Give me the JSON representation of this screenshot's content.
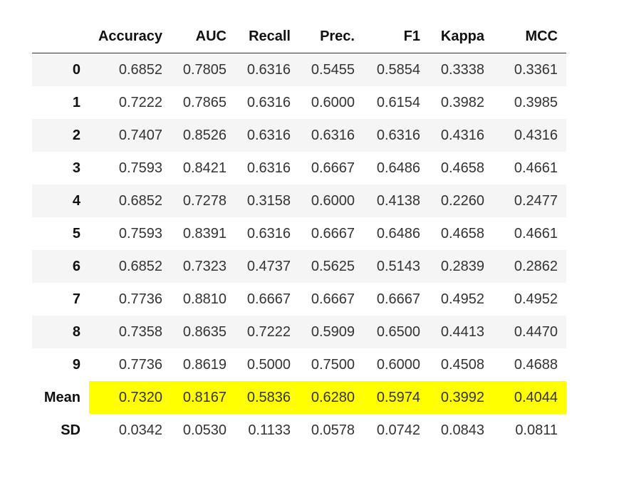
{
  "table": {
    "columns": [
      "Accuracy",
      "AUC",
      "Recall",
      "Prec.",
      "F1",
      "Kappa",
      "MCC"
    ],
    "rows": [
      {
        "index": "0",
        "values": [
          "0.6852",
          "0.7805",
          "0.6316",
          "0.5455",
          "0.5854",
          "0.3338",
          "0.3361"
        ]
      },
      {
        "index": "1",
        "values": [
          "0.7222",
          "0.7865",
          "0.6316",
          "0.6000",
          "0.6154",
          "0.3982",
          "0.3985"
        ]
      },
      {
        "index": "2",
        "values": [
          "0.7407",
          "0.8526",
          "0.6316",
          "0.6316",
          "0.6316",
          "0.4316",
          "0.4316"
        ]
      },
      {
        "index": "3",
        "values": [
          "0.7593",
          "0.8421",
          "0.6316",
          "0.6667",
          "0.6486",
          "0.4658",
          "0.4661"
        ]
      },
      {
        "index": "4",
        "values": [
          "0.6852",
          "0.7278",
          "0.3158",
          "0.6000",
          "0.4138",
          "0.2260",
          "0.2477"
        ]
      },
      {
        "index": "5",
        "values": [
          "0.7593",
          "0.8391",
          "0.6316",
          "0.6667",
          "0.6486",
          "0.4658",
          "0.4661"
        ]
      },
      {
        "index": "6",
        "values": [
          "0.6852",
          "0.7323",
          "0.4737",
          "0.5625",
          "0.5143",
          "0.2839",
          "0.2862"
        ]
      },
      {
        "index": "7",
        "values": [
          "0.7736",
          "0.8810",
          "0.6667",
          "0.6667",
          "0.6667",
          "0.4952",
          "0.4952"
        ]
      },
      {
        "index": "8",
        "values": [
          "0.7358",
          "0.8635",
          "0.7222",
          "0.5909",
          "0.6500",
          "0.4413",
          "0.4470"
        ]
      },
      {
        "index": "9",
        "values": [
          "0.7736",
          "0.8619",
          "0.5000",
          "0.7500",
          "0.6000",
          "0.4508",
          "0.4688"
        ]
      },
      {
        "index": "Mean",
        "values": [
          "0.7320",
          "0.8167",
          "0.5836",
          "0.6280",
          "0.5974",
          "0.3992",
          "0.4044"
        ]
      },
      {
        "index": "SD",
        "values": [
          "0.0342",
          "0.0530",
          "0.1133",
          "0.0578",
          "0.0742",
          "0.0843",
          "0.0811"
        ]
      }
    ],
    "highlight_row": "Mean",
    "highlight_color": "#ffff00",
    "stripe_color": "#f5f5f5"
  }
}
